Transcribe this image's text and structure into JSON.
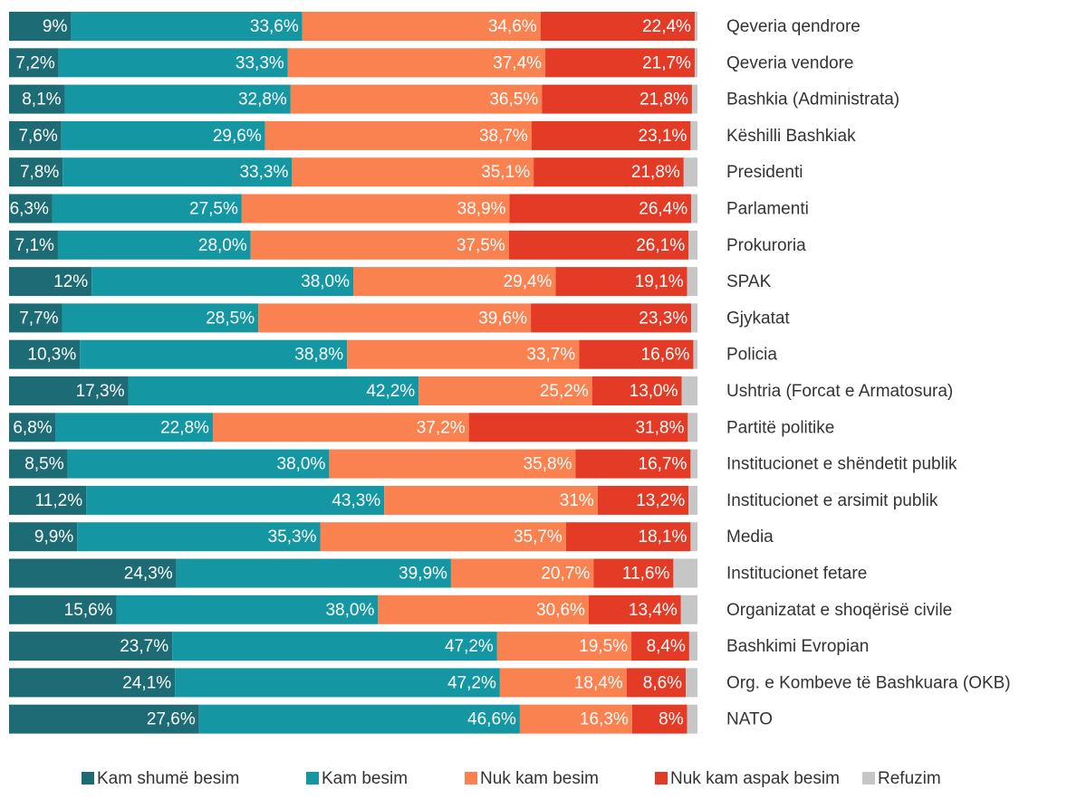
{
  "chart_data": {
    "type": "bar",
    "orientation": "horizontal",
    "stacked": true,
    "xlim": [
      0,
      100
    ],
    "categories": [
      "Qeveria qendrore",
      "Qeveria vendore",
      "Bashkia (Administrata)",
      "Këshilli Bashkiak",
      "Presidenti",
      "Parlamenti",
      "Prokuroria",
      "SPAK",
      "Gjykatat",
      "Policia",
      "Ushtria (Forcat e Armatosura)",
      "Partitë politike",
      "Institucionet e shëndetit publik",
      "Institucionet e arsimit publik",
      "Media",
      "Institucionet fetare",
      "Organizatat e shoqërisë civile",
      "Bashkimi Evropian",
      "Org. e Kombeve të Bashkuara (OKB)",
      "NATO"
    ],
    "series": [
      {
        "name": "Kam shumë besim",
        "color": "#1d6b74",
        "values": [
          9,
          7.2,
          8.1,
          7.6,
          7.8,
          6.3,
          7.1,
          12,
          7.7,
          10.3,
          17.3,
          6.8,
          8.5,
          11.2,
          9.9,
          24.3,
          15.6,
          23.7,
          24.1,
          27.6
        ],
        "value_labels": [
          "9%",
          "7,2%",
          "8,1%",
          "7,6%",
          "7,8%",
          "6,3%",
          "7,1%",
          "12%",
          "7,7%",
          "10,3%",
          "17,3%",
          "6,8%",
          "8,5%",
          "11,2%",
          "9,9%",
          "24,3%",
          "15,6%",
          "23,7%",
          "24,1%",
          "27,6%"
        ]
      },
      {
        "name": "Kam besim",
        "color": "#1597a3",
        "values": [
          33.6,
          33.3,
          32.8,
          29.6,
          33.3,
          27.5,
          28.0,
          38.0,
          28.5,
          38.8,
          42.2,
          22.8,
          38.0,
          43.3,
          35.3,
          39.9,
          38.0,
          47.2,
          47.2,
          46.6
        ],
        "value_labels": [
          "33,6%",
          "33,3%",
          "32,8%",
          "29,6%",
          "33,3%",
          "27,5%",
          "28,0%",
          "38,0%",
          "28,5%",
          "38,8%",
          "42,2%",
          "22,8%",
          "38,0%",
          "43,3%",
          "35,3%",
          "39,9%",
          "38,0%",
          "47,2%",
          "47,2%",
          "46,6%"
        ]
      },
      {
        "name": "Nuk kam besim",
        "color": "#fa8150",
        "values": [
          34.6,
          37.4,
          36.5,
          38.7,
          35.1,
          38.9,
          37.5,
          29.4,
          39.6,
          33.7,
          25.2,
          37.2,
          35.8,
          31,
          35.7,
          20.7,
          30.6,
          19.5,
          18.4,
          16.3
        ],
        "value_labels": [
          "34,6%",
          "37,4%",
          "36,5%",
          "38,7%",
          "35,1%",
          "38,9%",
          "37,5%",
          "29,4%",
          "39,6%",
          "33,7%",
          "25,2%",
          "37,2%",
          "35,8%",
          "31%",
          "35,7%",
          "20,7%",
          "30,6%",
          "19,5%",
          "18,4%",
          "16,3%"
        ]
      },
      {
        "name": "Nuk kam aspak besim",
        "color": "#e33b26",
        "values": [
          22.4,
          21.7,
          21.8,
          23.1,
          21.8,
          26.4,
          26.1,
          19.1,
          23.3,
          16.6,
          13.0,
          31.8,
          16.7,
          13.2,
          18.1,
          11.6,
          13.4,
          8.4,
          8.6,
          8
        ],
        "value_labels": [
          "22,4%",
          "21,7%",
          "21,8%",
          "23,1%",
          "21,8%",
          "26,4%",
          "26,1%",
          "19,1%",
          "23,3%",
          "16,6%",
          "13,0%",
          "31,8%",
          "16,7%",
          "13,2%",
          "18,1%",
          "11,6%",
          "13,4%",
          "8,4%",
          "8,6%",
          "8%"
        ]
      },
      {
        "name": "Refuzim",
        "color": "#c6c6c6",
        "values": [
          0.4,
          0.4,
          0.8,
          1.0,
          2.0,
          0.9,
          1.3,
          1.5,
          0.9,
          0.6,
          2.3,
          1.4,
          1.0,
          1.3,
          1.0,
          3.5,
          2.4,
          1.2,
          1.7,
          1.5
        ]
      }
    ]
  }
}
